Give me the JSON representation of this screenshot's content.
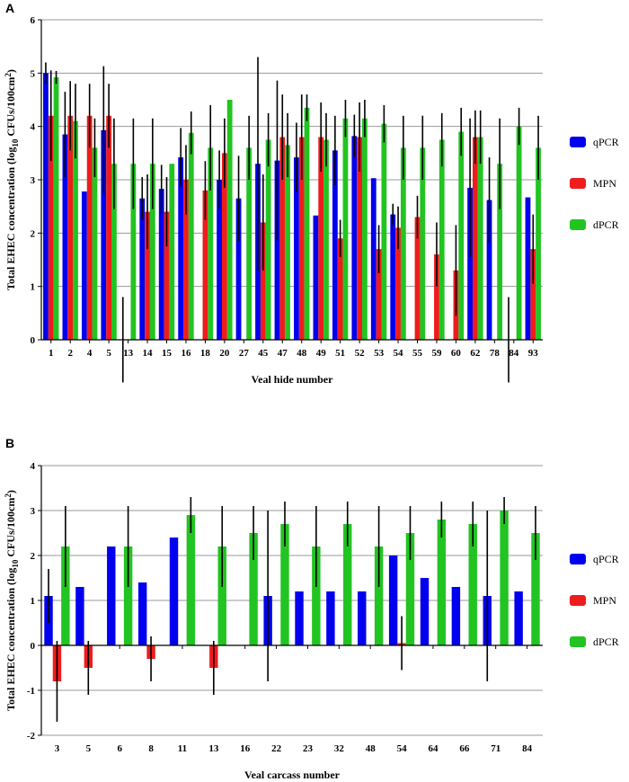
{
  "chart_data": [
    {
      "panel": "A",
      "type": "bar",
      "xlabel": "Veal hide number",
      "ylabel": "Total EHEC concentration (log10 CFUs/100cm2)",
      "ylim": [
        0,
        6
      ],
      "yticks": [
        0,
        1,
        2,
        3,
        4,
        5,
        6
      ],
      "grid": true,
      "legend_position": "right",
      "categories": [
        "1",
        "2",
        "4",
        "5",
        "13",
        "14",
        "15",
        "16",
        "18",
        "20",
        "27",
        "45",
        "47",
        "48",
        "49",
        "51",
        "52",
        "53",
        "54",
        "55",
        "59",
        "60",
        "62",
        "78",
        "84",
        "93"
      ],
      "series": [
        {
          "name": "qPCR",
          "color": "#0000ee",
          "values": [
            5.0,
            3.85,
            2.78,
            3.93,
            0,
            2.65,
            2.83,
            3.42,
            0,
            3.0,
            2.65,
            3.3,
            3.36,
            3.42,
            2.33,
            3.55,
            3.82,
            3.03,
            2.35,
            0,
            0,
            0,
            2.85,
            2.62,
            0,
            2.67
          ],
          "errors": [
            0.2,
            0.8,
            0,
            1.2,
            0.8,
            0.4,
            0.45,
            0.55,
            0,
            0.55,
            0.8,
            2.0,
            1.5,
            0.65,
            0,
            0.65,
            0.4,
            0,
            0.2,
            0,
            0,
            0,
            1.3,
            0.8,
            0.8,
            0
          ]
        },
        {
          "name": "MPN",
          "color": "#ee1c1c",
          "values": [
            4.2,
            4.2,
            4.2,
            4.2,
            0,
            2.4,
            2.4,
            3.0,
            2.8,
            3.5,
            0,
            2.2,
            3.8,
            3.8,
            3.8,
            1.9,
            3.8,
            1.7,
            2.1,
            2.3,
            1.6,
            1.3,
            3.8,
            0,
            0,
            1.7
          ],
          "errors": [
            0.85,
            0.65,
            0.6,
            0.6,
            0,
            0.7,
            0.65,
            0.65,
            0.55,
            0.65,
            0,
            0.9,
            0.8,
            0.8,
            0.65,
            0.35,
            0.65,
            0.45,
            0.4,
            0.4,
            0.6,
            0.85,
            0.5,
            0,
            0,
            0.65
          ]
        },
        {
          "name": "dPCR",
          "color": "#22c422",
          "values": [
            4.92,
            4.1,
            3.6,
            3.3,
            3.3,
            3.3,
            3.3,
            3.88,
            3.6,
            4.5,
            3.6,
            3.75,
            3.65,
            4.35,
            3.75,
            4.15,
            4.15,
            4.05,
            3.6,
            3.6,
            3.75,
            3.9,
            3.8,
            3.3,
            4.0,
            3.6
          ],
          "errors": [
            0.12,
            0.7,
            0.55,
            0.85,
            0.85,
            0.85,
            0.0,
            0.4,
            0.8,
            0.0,
            0.6,
            0.5,
            0.6,
            0.25,
            0.5,
            0.35,
            0.35,
            0.35,
            0.6,
            0.6,
            0.5,
            0.45,
            0.5,
            0.85,
            0.35,
            0.6
          ]
        }
      ]
    },
    {
      "panel": "B",
      "type": "bar",
      "xlabel": "Veal carcass number",
      "ylabel": "Total EHEC concentration (log10 CFUs/100cm2)",
      "ylim": [
        -2,
        4
      ],
      "yticks": [
        -2,
        -1,
        0,
        1,
        2,
        3,
        4
      ],
      "grid": true,
      "legend_position": "right",
      "categories": [
        "3",
        "5",
        "6",
        "8",
        "11",
        "13",
        "16",
        "22",
        "23",
        "32",
        "48",
        "54",
        "64",
        "66",
        "71",
        "84"
      ],
      "series": [
        {
          "name": "qPCR",
          "color": "#0000ee",
          "values": [
            1.1,
            1.3,
            2.2,
            1.4,
            2.4,
            0,
            0,
            1.1,
            1.2,
            1.2,
            1.2,
            2.0,
            1.5,
            1.3,
            1.1,
            1.2
          ],
          "errors": [
            0.6,
            0,
            0,
            0,
            0,
            0,
            0,
            1.9,
            0,
            0,
            0,
            0,
            0,
            0,
            1.9,
            0
          ]
        },
        {
          "name": "MPN",
          "color": "#ee1c1c",
          "values": [
            -0.8,
            -0.5,
            0,
            -0.3,
            0,
            -0.5,
            0,
            0,
            0,
            0,
            0,
            0.05,
            0,
            0,
            0,
            0
          ],
          "errors": [
            0.9,
            0.6,
            0,
            0.5,
            0,
            0.6,
            0,
            0,
            0,
            0,
            0,
            0.6,
            0,
            0,
            0,
            0
          ]
        },
        {
          "name": "dPCR",
          "color": "#22c422",
          "values": [
            2.2,
            0,
            2.2,
            0,
            2.9,
            2.2,
            2.5,
            2.7,
            2.2,
            2.7,
            2.2,
            2.5,
            2.8,
            2.7,
            3.0,
            2.5
          ],
          "errors": [
            0.9,
            0,
            0.9,
            0,
            0.4,
            0.9,
            0.6,
            0.5,
            0.9,
            0.5,
            0.9,
            0.6,
            0.4,
            0.5,
            0.3,
            0.6
          ]
        }
      ]
    }
  ]
}
